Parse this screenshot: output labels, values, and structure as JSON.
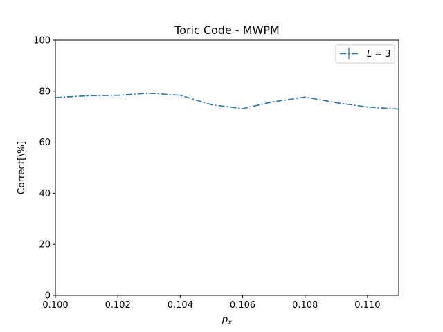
{
  "chart_data": {
    "type": "line",
    "title": "Toric Code - MWPM",
    "xlabel": "p",
    "xlabel_subscript": "x",
    "ylabel": "Correct[\\%]",
    "xlim": [
      0.1,
      0.111
    ],
    "ylim": [
      0,
      100
    ],
    "x_ticks": [
      0.1,
      0.102,
      0.104,
      0.106,
      0.108,
      0.11
    ],
    "x_tick_labels": [
      "0.100",
      "0.102",
      "0.104",
      "0.106",
      "0.108",
      "0.110"
    ],
    "y_ticks": [
      0,
      20,
      40,
      60,
      80,
      100
    ],
    "y_tick_labels": [
      "0",
      "20",
      "40",
      "60",
      "80",
      "100"
    ],
    "grid": false,
    "legend_position": "top-right",
    "series": [
      {
        "name": "L = 3",
        "legend_var": "L",
        "legend_rest": " = 3",
        "color": "#1f77b4",
        "linestyle": "dashdot",
        "x": [
          0.1,
          0.101,
          0.102,
          0.103,
          0.104,
          0.105,
          0.106,
          0.107,
          0.108,
          0.109,
          0.11,
          0.111
        ],
        "y": [
          77.5,
          78.2,
          78.4,
          79.2,
          78.4,
          74.7,
          73.2,
          75.9,
          77.7,
          75.5,
          73.8,
          73.0
        ]
      }
    ]
  }
}
